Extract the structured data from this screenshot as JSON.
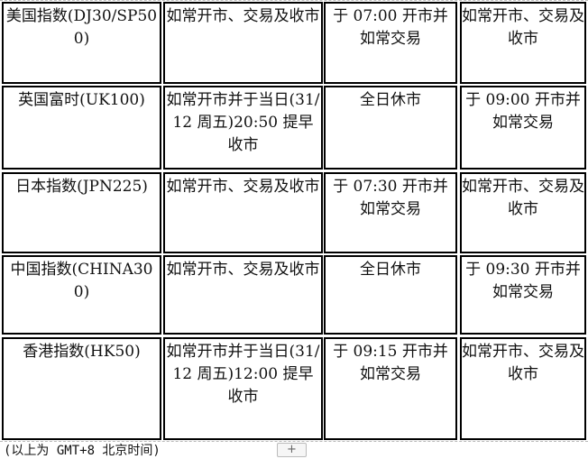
{
  "rows": [
    {
      "index": "美国指数(DJ30/SP500)",
      "c2": "如常开市、交易及收市",
      "c3": "于 07:00 开市并如常交易",
      "c4": "如常开市、交易及收市"
    },
    {
      "index": "英国富时(UK100)",
      "c2": "如常开市并于当日(31/12 周五)20:50 提早收市",
      "c3": "全日休市",
      "c4": "于 09:00 开市并如常交易"
    },
    {
      "index": "日本指数(JPN225)",
      "c2": "如常开市、交易及收市",
      "c3": "于 07:30 开市并如常交易",
      "c4": "如常开市、交易及收市"
    },
    {
      "index": "中国指数(CHINA300)",
      "c2": "如常开市、交易及收市",
      "c3": "全日休市",
      "c4": "于 09:30 开市并如常交易"
    },
    {
      "index": "香港指数(HK50)",
      "c2": "如常开市并于当日(31/12 周五)12:00 提早收市",
      "c3": "于 09:15 开市并如常交易",
      "c4": "如常开市、交易及收市"
    }
  ],
  "footer": "(以上为 GMT+8 北京时间)",
  "add_button": "+"
}
